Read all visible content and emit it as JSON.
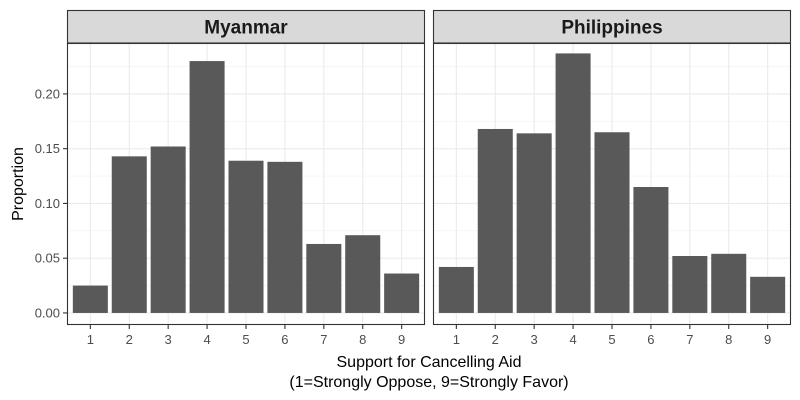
{
  "chart_data": {
    "type": "bar",
    "ylabel": "Proportion",
    "xlabel_lines": [
      "Support for Cancelling Aid",
      "(1=Strongly Oppose, 9=Strongly Favor)"
    ],
    "ylim": [
      -0.011,
      0.2465
    ],
    "y_ticks": [
      0.0,
      0.05,
      0.1,
      0.15,
      0.2
    ],
    "y_tick_labels": [
      "0.00",
      "0.05",
      "0.10",
      "0.15",
      "0.20"
    ],
    "categories": [
      "1",
      "2",
      "3",
      "4",
      "5",
      "6",
      "7",
      "8",
      "9"
    ],
    "grid": true,
    "bar_color": "#595959",
    "panels": [
      {
        "title": "Myanmar",
        "values": [
          0.025,
          0.143,
          0.152,
          0.23,
          0.139,
          0.138,
          0.063,
          0.071,
          0.036
        ]
      },
      {
        "title": "Philippines",
        "values": [
          0.042,
          0.168,
          0.164,
          0.237,
          0.165,
          0.115,
          0.052,
          0.054,
          0.033
        ]
      }
    ]
  }
}
